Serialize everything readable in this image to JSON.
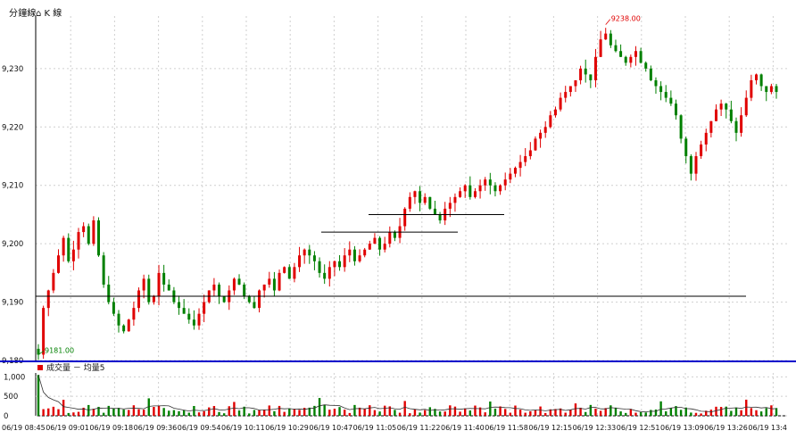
{
  "header": {
    "title_cn": "分鐘線",
    "subtitle": "K 線"
  },
  "colors": {
    "up": "#e00000",
    "down": "#008000",
    "axis": "#000000",
    "grid": "#cfcfcf",
    "divider": "#0000cc",
    "hline": "#000000"
  },
  "chart_data": [
    {
      "type": "candlestick",
      "yticks": [
        9180,
        9190,
        9200,
        9210,
        9220,
        9230
      ],
      "ytick_labels": [
        "9,180",
        "9,190",
        "9,200",
        "9,210",
        "9,220",
        "9,230"
      ],
      "ylim": [
        9180,
        9239
      ],
      "x_labels": [
        "06/19 08:45",
        "06/19 09:01",
        "06/19 09:18",
        "06/19 09:36",
        "06/19 09:54",
        "06/19 10:11",
        "06/19 10:29",
        "06/19 10:47",
        "06/19 11:05",
        "06/19 11:22",
        "06/19 11:40",
        "06/19 11:58",
        "06/19 12:15",
        "06/19 12:33",
        "06/19 12:51",
        "06/19 13:09",
        "06/19 13:26",
        "06/19 13:4"
      ],
      "max_label": "9238.00",
      "min_label": "9181.00",
      "levels": [
        9191,
        9202,
        9205
      ],
      "closes": [
        9181,
        9189,
        9192,
        9195,
        9198,
        9201,
        9197,
        9199,
        9202,
        9203,
        9200,
        9204,
        9198,
        9193,
        9190,
        9188,
        9186,
        9185,
        9187,
        9189,
        9192,
        9194,
        9190,
        9191,
        9195,
        9193,
        9192,
        9190,
        9189,
        9188,
        9187,
        9186,
        9188,
        9190,
        9192,
        9193,
        9191,
        9190,
        9192,
        9194,
        9193,
        9191,
        9190,
        9189,
        9192,
        9193,
        9194,
        9192,
        9195,
        9196,
        9194,
        9196,
        9198,
        9199,
        9198,
        9197,
        9195,
        9194,
        9196,
        9197,
        9196,
        9198,
        9199,
        9197,
        9198,
        9199,
        9200,
        9201,
        9199,
        9200,
        9202,
        9201,
        9203,
        9206,
        9208,
        9209,
        9207,
        9208,
        9206,
        9205,
        9204,
        9206,
        9207,
        9208,
        9209,
        9210,
        9208,
        9209,
        9210,
        9211,
        9210,
        9209,
        9210,
        9211,
        9212,
        9213,
        9214,
        9215,
        9216,
        9218,
        9219,
        9220,
        9222,
        9223,
        9225,
        9226,
        9227,
        9228,
        9230,
        9229,
        9228,
        9232,
        9235,
        9236,
        9234,
        9233,
        9232,
        9231,
        9232,
        9233,
        9231,
        9230,
        9228,
        9227,
        9226,
        9225,
        9224,
        9222,
        9218,
        9215,
        9212,
        9215,
        9217,
        9219,
        9221,
        9223,
        9224,
        9223,
        9221,
        9219,
        9222,
        9225,
        9228,
        9229,
        9227,
        9226,
        9227,
        9226
      ],
      "volume_ticks": [
        0,
        500,
        1000
      ],
      "volume_tick_labels": [
        "0",
        "500",
        "1,000"
      ],
      "volume_legend": "成交量 － 均量5"
    }
  ]
}
